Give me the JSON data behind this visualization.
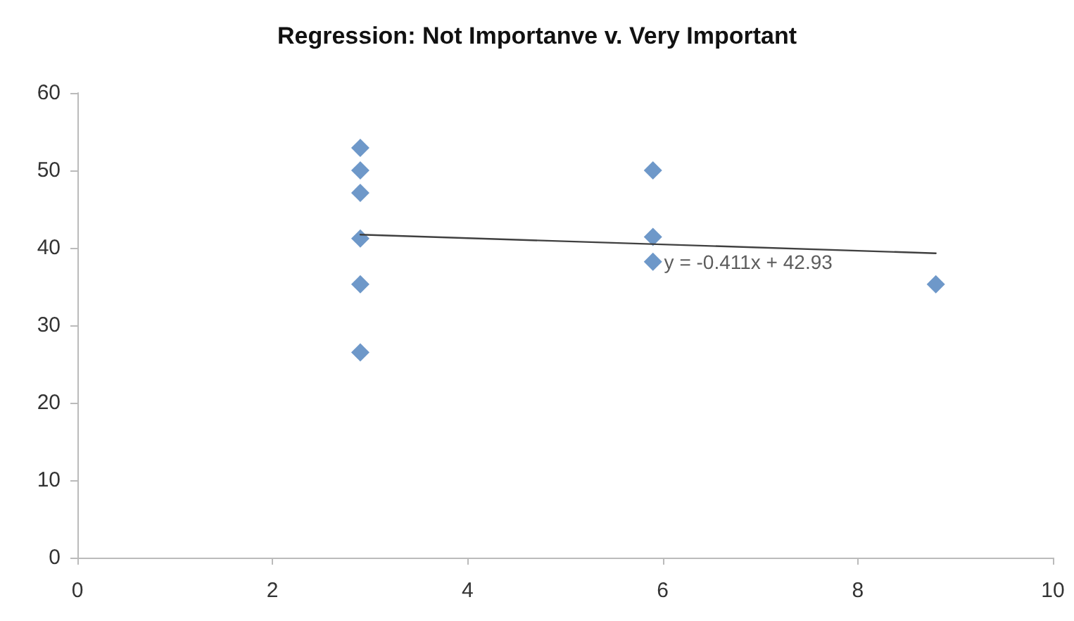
{
  "chart_data": {
    "type": "scatter",
    "title": "Regression: Not Importanve v. Very Important",
    "series": [
      {
        "color": "#4a7ebb",
        "marker": "diamond",
        "x": [
          2.9,
          2.9,
          2.9,
          2.9,
          2.9,
          2.9,
          5.9,
          5.9,
          5.9,
          8.8
        ],
        "values": [
          52.9,
          50,
          47.1,
          41.2,
          35.3,
          26.5,
          50,
          41.4,
          38.2,
          35.3
        ]
      },
      {
        "type": "line",
        "color": "#404040",
        "marker": "none",
        "x": [
          2.9,
          8.8
        ],
        "values": [
          41.7,
          39.3
        ]
      }
    ],
    "annotations": [
      {
        "text": "y = -0.411x + 42.93",
        "x": 6,
        "y": 38.2
      }
    ],
    "xlim": [
      0,
      10
    ],
    "xticks": [
      0,
      2,
      4,
      6,
      8,
      10
    ],
    "ylim": [
      0,
      60
    ],
    "yticks": [
      0,
      10,
      20,
      30,
      40,
      50,
      60
    ],
    "grid": false
  }
}
